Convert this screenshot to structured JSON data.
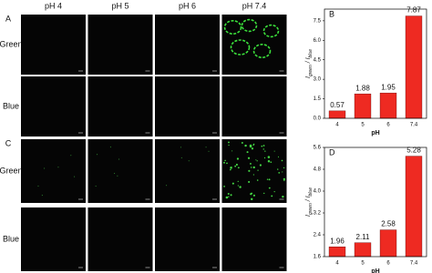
{
  "grid": {
    "columns": [
      "pH 4",
      "pH 5",
      "pH 6",
      "pH 7.4"
    ],
    "rows": [
      {
        "panel": "A",
        "label": "Green"
      },
      {
        "label": "Blue"
      },
      {
        "panel": "C",
        "label": "Green"
      },
      {
        "label": "Blue"
      }
    ]
  },
  "chart_data": [
    {
      "type": "bar",
      "label": "B",
      "categories": [
        "4",
        "5",
        "6",
        "7.4"
      ],
      "values": [
        0.57,
        1.88,
        1.95,
        7.87
      ],
      "color": "#ee2a22",
      "ylim": [
        0,
        8.4
      ],
      "yticks": [
        {
          "value": 0,
          "label": "0.0"
        },
        1.5,
        {
          "value": 3,
          "label": "3.0"
        },
        4.5,
        {
          "value": 6,
          "label": "6.0"
        },
        7.5
      ],
      "xlabel": "pH",
      "ylabel": [
        "I",
        "green",
        " / I",
        "blue"
      ]
    },
    {
      "type": "bar",
      "label": "D",
      "categories": [
        "4",
        "5",
        "6",
        "7.4"
      ],
      "values": [
        1.96,
        2.11,
        2.58,
        5.28
      ],
      "color": "#ee2a22",
      "ylim": [
        1.6,
        5.6
      ],
      "yticks": [
        1.6,
        2.4,
        3.2,
        {
          "value": 4,
          "label": "4.0"
        },
        4.8,
        5.6
      ],
      "xlabel": "pH",
      "ylabel": [
        "I",
        "green",
        " / I",
        "blue"
      ]
    }
  ]
}
